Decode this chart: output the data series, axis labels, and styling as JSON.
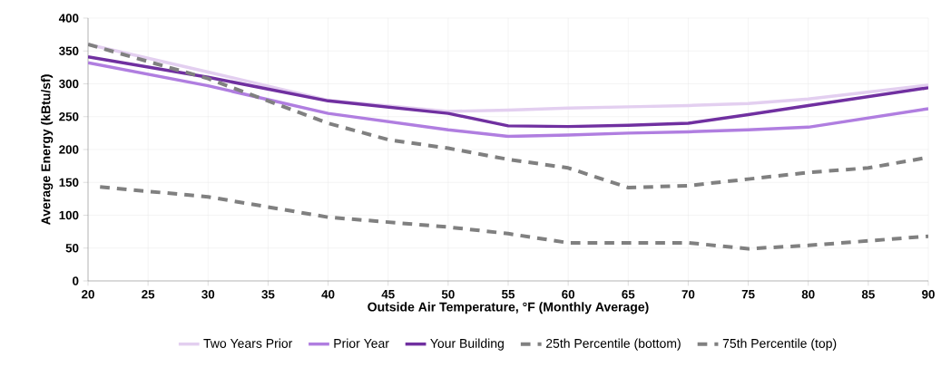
{
  "chart_data": {
    "type": "line",
    "xlabel": "Outside Air Temperature, °F (Monthly Average)",
    "ylabel": "Average Energy (kBtu/sf)",
    "xlim": [
      20,
      90
    ],
    "xticks": [
      20,
      25,
      30,
      35,
      40,
      45,
      50,
      55,
      60,
      65,
      70,
      75,
      80,
      85,
      90
    ],
    "ylim": [
      0,
      400
    ],
    "yticks": [
      0,
      50,
      100,
      150,
      200,
      250,
      300,
      350,
      400
    ],
    "grid": true,
    "legend": "bottom",
    "marker": "none",
    "series": [
      {
        "name": "Two Years Prior",
        "color": "#e3cff0",
        "line_style": "solid",
        "x": [
          20,
          30,
          40,
          50,
          55,
          60,
          65,
          70,
          75,
          80,
          90
        ],
        "values": [
          360,
          318,
          275,
          258,
          260,
          263,
          265,
          267,
          270,
          277,
          298
        ]
      },
      {
        "name": "Prior Year",
        "color": "#b07ee0",
        "line_style": "solid",
        "x": [
          20,
          30,
          40,
          50,
          55,
          60,
          65,
          70,
          75,
          80,
          90
        ],
        "values": [
          332,
          297,
          255,
          230,
          220,
          222,
          225,
          227,
          230,
          234,
          262
        ]
      },
      {
        "name": "Your Building",
        "color": "#7030a0",
        "line_style": "solid",
        "x": [
          20,
          30,
          40,
          50,
          55,
          60,
          65,
          70,
          75,
          80,
          90
        ],
        "values": [
          341,
          310,
          274,
          255,
          236,
          235,
          237,
          240,
          253,
          267,
          294
        ]
      },
      {
        "name": "25th Percentile (bottom)",
        "color": "#808080",
        "line_style": "dashed",
        "x": [
          21,
          30,
          40,
          50,
          55,
          60,
          65,
          70,
          75,
          80,
          90
        ],
        "values": [
          143,
          128,
          97,
          82,
          72,
          58,
          58,
          58,
          49,
          54,
          68
        ]
      },
      {
        "name": "75th Percentile (top)",
        "color": "#808080",
        "line_style": "dashed",
        "x": [
          20,
          30,
          40,
          45,
          50,
          55,
          60,
          65,
          70,
          75,
          80,
          85,
          90
        ],
        "values": [
          360,
          308,
          240,
          215,
          202,
          185,
          172,
          142,
          145,
          155,
          165,
          172,
          188
        ]
      }
    ]
  }
}
